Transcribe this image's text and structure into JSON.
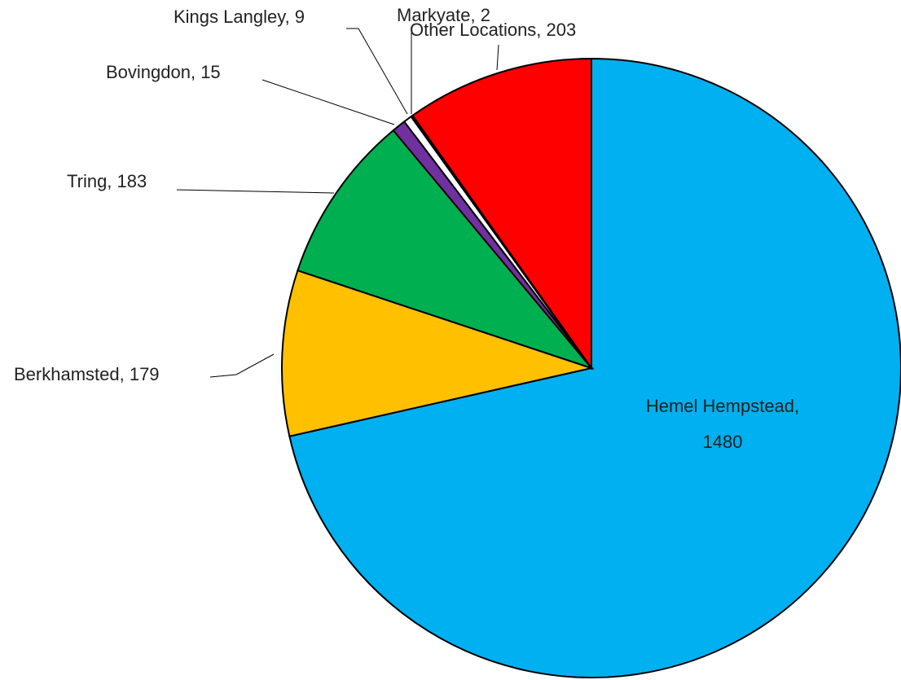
{
  "chart_data": {
    "type": "pie",
    "categories": [
      "Hemel Hempstead",
      "Berkhamsted",
      "Tring",
      "Bovingdon",
      "Kings Langley",
      "Markyate",
      "Other Locations"
    ],
    "values": [
      1480,
      179,
      183,
      15,
      9,
      2,
      203
    ],
    "value_labels": [
      "Hemel Hempstead, 1480",
      "Berkhamsted, 179",
      "Tring, 183",
      "Bovingdon, 15",
      "Kings Langley, 9",
      "Markyate, 2",
      "Other Locations, 203"
    ],
    "colors": [
      "#00b0f0",
      "#ffc000",
      "#00b050",
      "#7030a0",
      "#ffffff",
      "#002060",
      "#ff0000"
    ]
  }
}
